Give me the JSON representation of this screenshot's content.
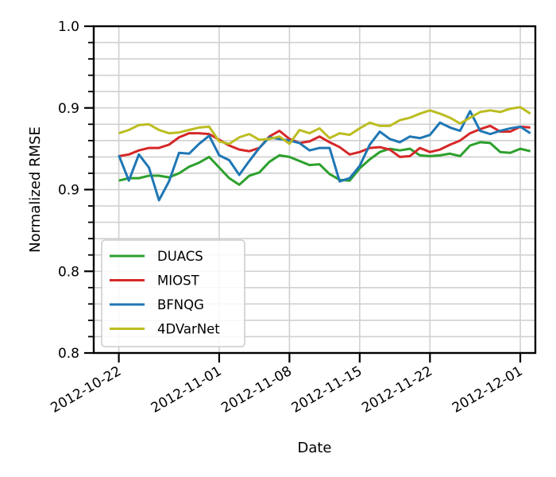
{
  "chart_data": {
    "type": "line",
    "xlabel": "Date",
    "ylabel": "Normalized RMSE",
    "x_axis": "date",
    "xlim": [
      "2012-10-19T12:00",
      "2012-12-02T12:00"
    ],
    "ylim": [
      0.8,
      1.0
    ],
    "x_ticks": [
      "2012-10-22",
      "2012-11-01",
      "2012-11-08",
      "2012-11-15",
      "2012-11-22",
      "2012-12-01"
    ],
    "y_ticks": [
      0.8,
      0.85,
      0.9,
      0.95,
      1.0
    ],
    "y_tick_labels": [
      "0.8",
      "0.8",
      "0.9",
      "0.9",
      "1.0"
    ],
    "grid": true,
    "legend_position": "lower-left",
    "x_start_date": "2012-10-22",
    "series": [
      {
        "name": "DUACS",
        "color": "#2ca02c",
        "values": [
          0.9055,
          0.907,
          0.907,
          0.9085,
          0.9085,
          0.9075,
          0.91,
          0.914,
          0.9165,
          0.92,
          0.9135,
          0.907,
          0.903,
          0.9085,
          0.9105,
          0.917,
          0.921,
          0.92,
          0.9175,
          0.915,
          0.9155,
          0.9095,
          0.906,
          0.9055,
          0.913,
          0.9185,
          0.923,
          0.925,
          0.924,
          0.925,
          0.921,
          0.9205,
          0.921,
          0.922,
          0.9205,
          0.927,
          0.929,
          0.9285,
          0.923,
          0.9225,
          0.925,
          0.9235
        ]
      },
      {
        "name": "MIOST",
        "color": "#d62728",
        "values": [
          0.9205,
          0.9215,
          0.924,
          0.9255,
          0.9255,
          0.9275,
          0.932,
          0.9345,
          0.9345,
          0.934,
          0.9305,
          0.927,
          0.9245,
          0.9235,
          0.9255,
          0.9325,
          0.936,
          0.931,
          0.9285,
          0.9295,
          0.9325,
          0.929,
          0.926,
          0.9215,
          0.923,
          0.9255,
          0.926,
          0.9245,
          0.92,
          0.9205,
          0.9255,
          0.923,
          0.9245,
          0.9275,
          0.93,
          0.9345,
          0.937,
          0.939,
          0.9355,
          0.9355,
          0.9385,
          0.938
        ]
      },
      {
        "name": "BFNQG",
        "color": "#1f77b4",
        "values": [
          0.921,
          0.9055,
          0.9215,
          0.9135,
          0.8935,
          0.905,
          0.9225,
          0.922,
          0.928,
          0.933,
          0.921,
          0.918,
          0.909,
          0.9175,
          0.9255,
          0.932,
          0.931,
          0.93,
          0.9285,
          0.924,
          0.9255,
          0.9255,
          0.905,
          0.907,
          0.9145,
          0.9275,
          0.9355,
          0.931,
          0.929,
          0.9325,
          0.9315,
          0.9335,
          0.941,
          0.938,
          0.936,
          0.948,
          0.936,
          0.934,
          0.936,
          0.9375,
          0.9385,
          0.9345
        ]
      },
      {
        "name": "4DVarNet",
        "color": "#bcbd22",
        "values": [
          0.9345,
          0.9365,
          0.9395,
          0.94,
          0.9365,
          0.9345,
          0.935,
          0.9365,
          0.938,
          0.9385,
          0.9295,
          0.928,
          0.932,
          0.934,
          0.9305,
          0.931,
          0.9325,
          0.928,
          0.9365,
          0.9345,
          0.9375,
          0.9315,
          0.9345,
          0.9335,
          0.9375,
          0.941,
          0.939,
          0.939,
          0.9425,
          0.944,
          0.9465,
          0.9485,
          0.9465,
          0.944,
          0.9405,
          0.944,
          0.9475,
          0.9485,
          0.9475,
          0.9495,
          0.9505,
          0.9465
        ]
      }
    ]
  }
}
